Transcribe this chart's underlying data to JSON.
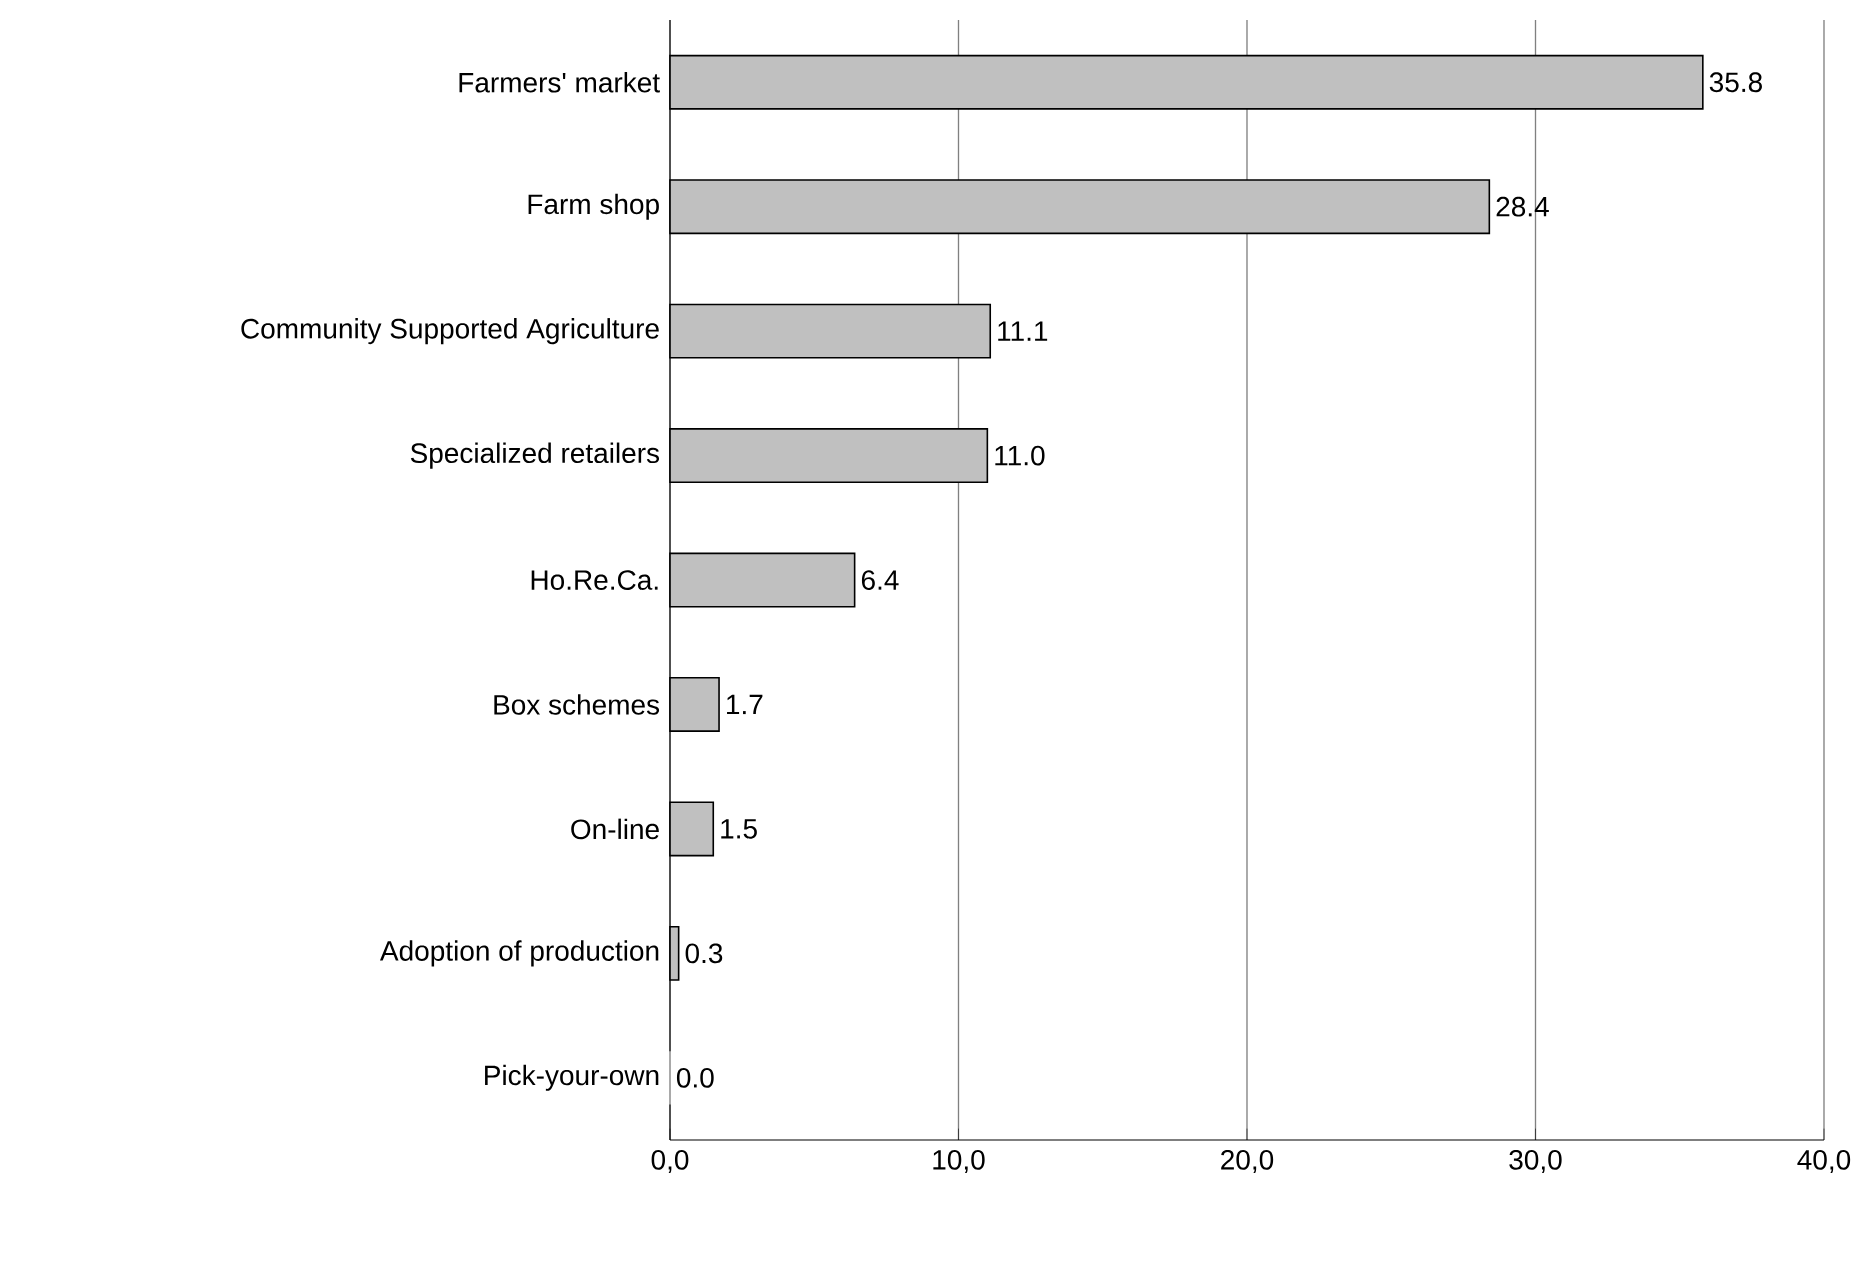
{
  "chart_data": {
    "type": "bar",
    "orientation": "horizontal",
    "categories": [
      "Farmers' market",
      "Farm shop",
      "Community Supported Agriculture",
      "Specialized retailers",
      "Ho.Re.Ca.",
      "Box schemes",
      "On-line",
      "Adoption of production",
      "Pick-your-own"
    ],
    "values": [
      35.8,
      28.4,
      11.1,
      11.0,
      6.4,
      1.7,
      1.5,
      0.3,
      0.0
    ],
    "value_labels": [
      "35.8",
      "28.4",
      "11.1",
      "11.0",
      "6.4",
      "1.7",
      "1.5",
      "0.3",
      "0.0"
    ],
    "color": "#c0c0c0",
    "xlim": [
      0,
      40
    ],
    "xticks": [
      {
        "value": 0,
        "label": "0,0"
      },
      {
        "value": 10,
        "label": "10,0"
      },
      {
        "value": 20,
        "label": "20,0"
      },
      {
        "value": 30,
        "label": "30,0"
      },
      {
        "value": 40,
        "label": "40,0"
      }
    ],
    "grid": "x"
  }
}
